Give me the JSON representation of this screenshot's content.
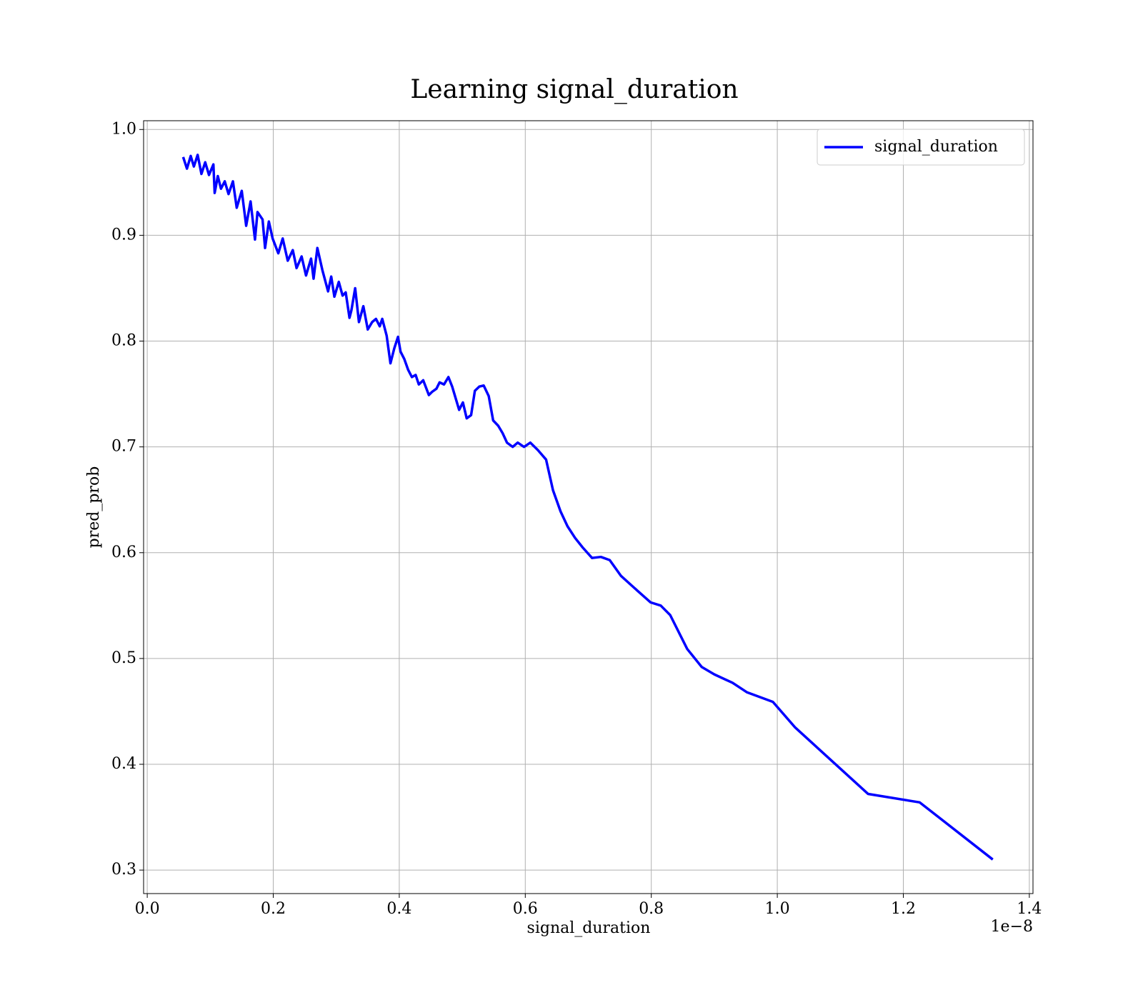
{
  "chart_data": {
    "type": "line",
    "title": "Learning signal_duration",
    "xlabel": "signal_duration",
    "ylabel": "pred_prob",
    "xaxis_offset": "1e−8",
    "xlim": [
      -0.0058,
      1.4058
    ],
    "ylim": [
      0.2778,
      1.0083
    ],
    "xticks": [
      {
        "value": 0,
        "label": "0.0"
      },
      0.2,
      0.4,
      0.6,
      0.8,
      {
        "value": 1,
        "label": "1.0"
      },
      1.2,
      1.4
    ],
    "yticks": [
      0.3,
      0.4,
      0.5,
      0.6,
      0.7,
      0.8,
      0.9,
      {
        "value": 1,
        "label": "1.0"
      }
    ],
    "grid": true,
    "legend": "upper right",
    "x": [
      0.057,
      0.063,
      0.069,
      0.074,
      0.08,
      0.086,
      0.092,
      0.098,
      0.105,
      0.107,
      0.112,
      0.117,
      0.123,
      0.129,
      0.136,
      0.142,
      0.15,
      0.157,
      0.164,
      0.171,
      0.175,
      0.183,
      0.187,
      0.193,
      0.199,
      0.208,
      0.215,
      0.223,
      0.231,
      0.237,
      0.245,
      0.252,
      0.26,
      0.264,
      0.27,
      0.278,
      0.287,
      0.292,
      0.297,
      0.304,
      0.31,
      0.315,
      0.321,
      0.324,
      0.33,
      0.336,
      0.343,
      0.35,
      0.357,
      0.363,
      0.369,
      0.373,
      0.38,
      0.386,
      0.392,
      0.398,
      0.402,
      0.408,
      0.414,
      0.42,
      0.426,
      0.431,
      0.438,
      0.447,
      0.452,
      0.459,
      0.464,
      0.471,
      0.478,
      0.484,
      0.49,
      0.495,
      0.501,
      0.507,
      0.514,
      0.52,
      0.527,
      0.534,
      0.542,
      0.549,
      0.557,
      0.564,
      0.571,
      0.58,
      0.588,
      0.598,
      0.608,
      0.62,
      0.633,
      0.644,
      0.656,
      0.667,
      0.679,
      0.691,
      0.706,
      0.72,
      0.734,
      0.752,
      0.78,
      0.799,
      0.815,
      0.83,
      0.857,
      0.88,
      0.9,
      0.929,
      0.952,
      0.993,
      1.028,
      1.144,
      1.226,
      1.342
    ],
    "series": [
      {
        "name": "signal_duration",
        "color": "#0000ff",
        "values": [
          0.974,
          0.963,
          0.975,
          0.965,
          0.976,
          0.958,
          0.969,
          0.957,
          0.967,
          0.94,
          0.956,
          0.944,
          0.951,
          0.939,
          0.951,
          0.926,
          0.942,
          0.909,
          0.932,
          0.896,
          0.922,
          0.915,
          0.888,
          0.913,
          0.897,
          0.883,
          0.897,
          0.876,
          0.886,
          0.869,
          0.88,
          0.862,
          0.878,
          0.859,
          0.888,
          0.867,
          0.847,
          0.861,
          0.842,
          0.856,
          0.843,
          0.846,
          0.822,
          0.829,
          0.85,
          0.818,
          0.833,
          0.811,
          0.818,
          0.821,
          0.814,
          0.821,
          0.805,
          0.779,
          0.793,
          0.804,
          0.79,
          0.783,
          0.773,
          0.766,
          0.768,
          0.759,
          0.763,
          0.749,
          0.752,
          0.755,
          0.761,
          0.759,
          0.766,
          0.757,
          0.745,
          0.735,
          0.742,
          0.727,
          0.73,
          0.753,
          0.757,
          0.758,
          0.748,
          0.725,
          0.72,
          0.713,
          0.704,
          0.7,
          0.704,
          0.7,
          0.704,
          0.697,
          0.688,
          0.659,
          0.639,
          0.625,
          0.614,
          0.605,
          0.595,
          0.596,
          0.593,
          0.578,
          0.563,
          0.553,
          0.55,
          0.541,
          0.509,
          0.492,
          0.485,
          0.477,
          0.468,
          0.459,
          0.435,
          0.372,
          0.364,
          0.31
        ]
      }
    ]
  }
}
